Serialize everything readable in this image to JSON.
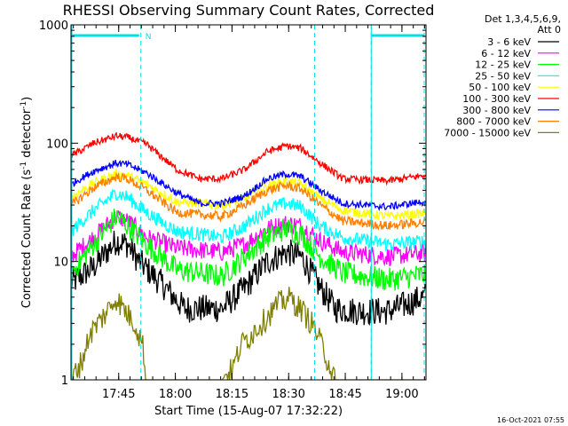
{
  "chart_data": {
    "type": "line",
    "title": "RHESSI Observing Summary Count Rates, Corrected",
    "xlabel": "Start Time (15-Aug-07 17:32:22)",
    "ylabel_main": "Corrected Count Rate (s",
    "ylabel_sup1": "-1",
    "ylabel_mid": " detector",
    "ylabel_sup2": "-1",
    "ylabel_end": ")",
    "yscale": "log",
    "ylim": [
      1,
      1000
    ],
    "xlim_minutes": [
      0,
      94
    ],
    "y_ticks": [
      {
        "value": 1,
        "label": "1"
      },
      {
        "value": 10,
        "label": "10"
      },
      {
        "value": 100,
        "label": "100"
      },
      {
        "value": 1000,
        "label": "1000"
      }
    ],
    "x_ticks": [
      {
        "minute": 12.63,
        "label": "17:45"
      },
      {
        "minute": 27.63,
        "label": "18:00"
      },
      {
        "minute": 42.63,
        "label": "18:15"
      },
      {
        "minute": 57.63,
        "label": "18:30"
      },
      {
        "minute": 72.63,
        "label": "18:45"
      },
      {
        "minute": 87.63,
        "label": "19:00"
      }
    ],
    "legend_header": [
      "Det 1,3,4,5,6,9,",
      "Att 0"
    ],
    "flags": {
      "night_start_minutes": [
        0,
        79.5
      ],
      "night_end_minutes": [
        18.5,
        96
      ],
      "night_label": "N",
      "saa_dashed_minutes": [
        18.5,
        64.5,
        79.5,
        96
      ],
      "color": "#00e0e0"
    },
    "series": [
      {
        "name": "3 - 6 keV",
        "color": "#000000",
        "noise": 0.12,
        "curve": [
          [
            0,
            6.5
          ],
          [
            6,
            9
          ],
          [
            12,
            15
          ],
          [
            15,
            14
          ],
          [
            18,
            10
          ],
          [
            24,
            6.5
          ],
          [
            30,
            4
          ],
          [
            40,
            4
          ],
          [
            46,
            6
          ],
          [
            52,
            10
          ],
          [
            57,
            12
          ],
          [
            61,
            11
          ],
          [
            66,
            6
          ],
          [
            70,
            4
          ],
          [
            76,
            3.8
          ],
          [
            84,
            3.8
          ],
          [
            90,
            4.5
          ],
          [
            96,
            5.5
          ]
        ]
      },
      {
        "name": "6 - 12 keV",
        "color": "#ff00ff",
        "noise": 0.08,
        "curve": [
          [
            0,
            11
          ],
          [
            6,
            16
          ],
          [
            12,
            24
          ],
          [
            15,
            22
          ],
          [
            20,
            16
          ],
          [
            28,
            13
          ],
          [
            40,
            12
          ],
          [
            46,
            14
          ],
          [
            52,
            19
          ],
          [
            57,
            21
          ],
          [
            61,
            20
          ],
          [
            66,
            15
          ],
          [
            72,
            12
          ],
          [
            84,
            11
          ],
          [
            96,
            12
          ]
        ]
      },
      {
        "name": "12 - 25 keV",
        "color": "#00ff00",
        "noise": 0.1,
        "curve": [
          [
            0,
            8
          ],
          [
            6,
            14
          ],
          [
            12,
            24
          ],
          [
            15,
            20
          ],
          [
            20,
            14
          ],
          [
            28,
            8.5
          ],
          [
            40,
            7.5
          ],
          [
            46,
            11
          ],
          [
            52,
            16
          ],
          [
            57,
            19
          ],
          [
            61,
            17
          ],
          [
            66,
            11
          ],
          [
            72,
            8
          ],
          [
            84,
            7
          ],
          [
            96,
            8
          ]
        ]
      },
      {
        "name": "25 - 50 keV",
        "color": "#00ffff",
        "noise": 0.06,
        "curve": [
          [
            0,
            18
          ],
          [
            6,
            27
          ],
          [
            12,
            38
          ],
          [
            15,
            35
          ],
          [
            20,
            26
          ],
          [
            28,
            18
          ],
          [
            40,
            16
          ],
          [
            46,
            20
          ],
          [
            52,
            28
          ],
          [
            57,
            31
          ],
          [
            61,
            29
          ],
          [
            66,
            20
          ],
          [
            72,
            16
          ],
          [
            84,
            14
          ],
          [
            96,
            15
          ]
        ]
      },
      {
        "name": "50 - 100 keV",
        "color": "#ffff00",
        "noise": 0.04,
        "curve": [
          [
            0,
            35
          ],
          [
            6,
            46
          ],
          [
            12,
            55
          ],
          [
            15,
            53
          ],
          [
            20,
            45
          ],
          [
            28,
            32
          ],
          [
            40,
            30
          ],
          [
            46,
            34
          ],
          [
            52,
            44
          ],
          [
            57,
            48
          ],
          [
            61,
            45
          ],
          [
            66,
            34
          ],
          [
            72,
            27
          ],
          [
            84,
            24
          ],
          [
            96,
            26
          ]
        ]
      },
      {
        "name": "100 - 300 keV",
        "color": "#ff0000",
        "noise": 0.03,
        "curve": [
          [
            0,
            78
          ],
          [
            6,
            100
          ],
          [
            12,
            115
          ],
          [
            15,
            112
          ],
          [
            20,
            98
          ],
          [
            28,
            60
          ],
          [
            34,
            50
          ],
          [
            40,
            50
          ],
          [
            46,
            60
          ],
          [
            52,
            85
          ],
          [
            57,
            95
          ],
          [
            61,
            90
          ],
          [
            66,
            68
          ],
          [
            72,
            50
          ],
          [
            84,
            48
          ],
          [
            96,
            55
          ]
        ]
      },
      {
        "name": "300 - 800 keV",
        "color": "#0000ff",
        "noise": 0.03,
        "curve": [
          [
            0,
            45
          ],
          [
            6,
            58
          ],
          [
            12,
            68
          ],
          [
            15,
            66
          ],
          [
            20,
            56
          ],
          [
            28,
            38
          ],
          [
            34,
            31
          ],
          [
            40,
            31
          ],
          [
            46,
            36
          ],
          [
            52,
            50
          ],
          [
            57,
            55
          ],
          [
            61,
            52
          ],
          [
            66,
            40
          ],
          [
            72,
            31
          ],
          [
            84,
            29
          ],
          [
            96,
            33
          ]
        ]
      },
      {
        "name": "800 - 7000 keV",
        "color": "#ff8000",
        "noise": 0.04,
        "curve": [
          [
            0,
            30
          ],
          [
            6,
            42
          ],
          [
            12,
            52
          ],
          [
            15,
            50
          ],
          [
            20,
            40
          ],
          [
            28,
            26
          ],
          [
            40,
            24
          ],
          [
            46,
            30
          ],
          [
            52,
            40
          ],
          [
            57,
            44
          ],
          [
            61,
            41
          ],
          [
            66,
            30
          ],
          [
            72,
            22
          ],
          [
            84,
            20
          ],
          [
            96,
            22
          ]
        ]
      },
      {
        "name": "7000 - 15000 keV",
        "color": "#808000",
        "noise": 0,
        "segments": [
          [
            0,
            1
          ],
          [
            3,
            1.5
          ],
          [
            5,
            2.5
          ],
          [
            7,
            3
          ],
          [
            10,
            4
          ],
          [
            12,
            5
          ],
          [
            14,
            4
          ],
          [
            17,
            3
          ],
          [
            19,
            2
          ],
          [
            20,
            1
          ],
          [
            30,
            1
          ],
          [
            38,
            1
          ],
          [
            40,
            1
          ],
          [
            43,
            1.3
          ],
          [
            45,
            2
          ],
          [
            48,
            2.5
          ],
          [
            52,
            3.5
          ],
          [
            55,
            4.5
          ],
          [
            58,
            5
          ],
          [
            61,
            4
          ],
          [
            64,
            3
          ],
          [
            67,
            1.8
          ],
          [
            70,
            1
          ],
          [
            96,
            1
          ]
        ]
      }
    ]
  },
  "footer": {
    "timestamp": "16-Oct-2021 07:55"
  }
}
